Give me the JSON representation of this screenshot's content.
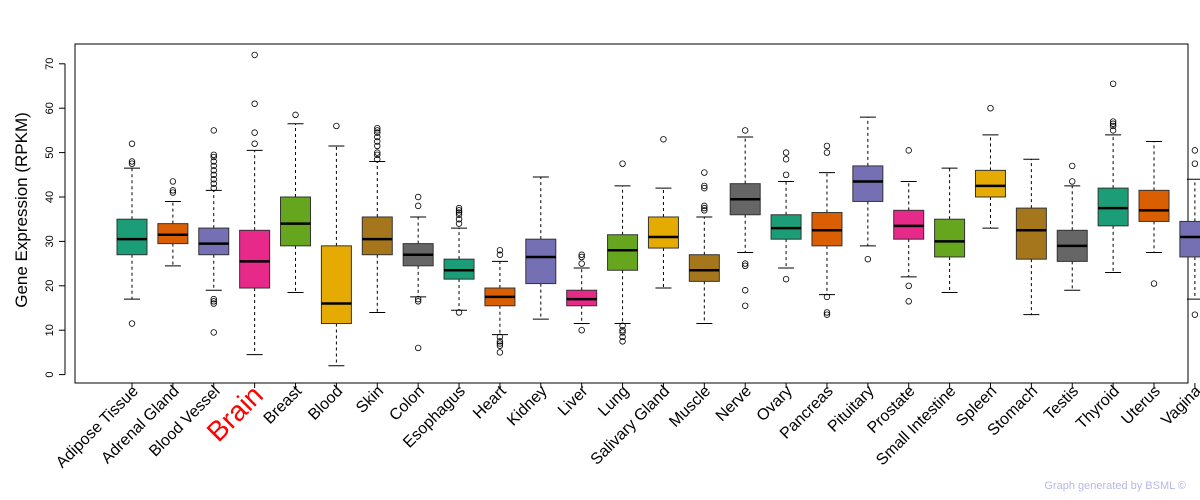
{
  "chart_data": {
    "type": "boxplot",
    "title": "",
    "ylabel": "Gene Expression (RPKM)",
    "xlabel": "",
    "ylim": [
      0,
      75
    ],
    "yticks": [
      0,
      10,
      20,
      30,
      40,
      50,
      60,
      70
    ],
    "highlight": "Brain",
    "highlight_color": "#ff0000",
    "series": [
      {
        "name": "Adipose Tissue",
        "color": "#1b9e77",
        "whisker_low": 17,
        "q1": 27,
        "median": 30.5,
        "q3": 35,
        "whisker_high": 46.5,
        "outliers": [
          11.5,
          47.5,
          48,
          52
        ]
      },
      {
        "name": "Adrenal Gland",
        "color": "#d95f02",
        "whisker_low": 24.5,
        "q1": 29.5,
        "median": 31.5,
        "q3": 34,
        "whisker_high": 39,
        "outliers": [
          41,
          41.5,
          43.5
        ]
      },
      {
        "name": "Blood Vessel",
        "color": "#7570b3",
        "whisker_low": 19,
        "q1": 27,
        "median": 29.5,
        "q3": 33,
        "whisker_high": 41.5,
        "outliers": [
          9.5,
          16,
          16.5,
          17,
          42,
          43,
          44,
          45,
          46,
          47,
          48,
          49,
          49.5,
          55
        ]
      },
      {
        "name": "Brain",
        "color": "#e7298a",
        "whisker_low": 4.5,
        "q1": 19.5,
        "median": 25.5,
        "q3": 32.5,
        "whisker_high": 50.5,
        "outliers": [
          52,
          54.5,
          61,
          72
        ]
      },
      {
        "name": "Breast",
        "color": "#66a61e",
        "whisker_low": 18.5,
        "q1": 29,
        "median": 34,
        "q3": 40,
        "whisker_high": 56.5,
        "outliers": [
          58.5
        ]
      },
      {
        "name": "Blood",
        "color": "#e6ab02",
        "whisker_low": 2,
        "q1": 11.5,
        "median": 16,
        "q3": 29,
        "whisker_high": 51.5,
        "outliers": [
          56
        ]
      },
      {
        "name": "Skin",
        "color": "#a6761d",
        "whisker_low": 14,
        "q1": 27,
        "median": 30.5,
        "q3": 35.5,
        "whisker_high": 48,
        "outliers": [
          48.5,
          49.5,
          50,
          51.5,
          52.5,
          53.5,
          54.5,
          55,
          55.5
        ]
      },
      {
        "name": "Colon",
        "color": "#666666",
        "whisker_low": 17.5,
        "q1": 24.5,
        "median": 27,
        "q3": 29.5,
        "whisker_high": 35.5,
        "outliers": [
          6,
          16.5,
          17,
          38,
          40
        ]
      },
      {
        "name": "Esophagus",
        "color": "#1b9e77",
        "whisker_low": 14.5,
        "q1": 21.5,
        "median": 23.5,
        "q3": 26,
        "whisker_high": 33,
        "outliers": [
          14,
          34,
          35,
          36,
          36.5,
          37,
          37.5
        ]
      },
      {
        "name": "Heart",
        "color": "#d95f02",
        "whisker_low": 9,
        "q1": 15.5,
        "median": 17.5,
        "q3": 19.5,
        "whisker_high": 25.5,
        "outliers": [
          5,
          6.5,
          7,
          7.5,
          8.5,
          27,
          28
        ]
      },
      {
        "name": "Kidney",
        "color": "#7570b3",
        "whisker_low": 12.5,
        "q1": 20.5,
        "median": 26.5,
        "q3": 30.5,
        "whisker_high": 44.5,
        "outliers": []
      },
      {
        "name": "Liver",
        "color": "#e7298a",
        "whisker_low": 11.5,
        "q1": 15.5,
        "median": 17,
        "q3": 19,
        "whisker_high": 24,
        "outliers": [
          10,
          25,
          26.5,
          27
        ]
      },
      {
        "name": "Lung",
        "color": "#66a61e",
        "whisker_low": 11.5,
        "q1": 23.5,
        "median": 28,
        "q3": 31.5,
        "whisker_high": 42.5,
        "outliers": [
          7.5,
          8.5,
          9.5,
          10,
          11,
          47.5
        ]
      },
      {
        "name": "Salivary Gland",
        "color": "#e6ab02",
        "whisker_low": 19.5,
        "q1": 28.5,
        "median": 31,
        "q3": 35.5,
        "whisker_high": 42,
        "outliers": [
          53
        ]
      },
      {
        "name": "Muscle",
        "color": "#a6761d",
        "whisker_low": 11.5,
        "q1": 21,
        "median": 23.5,
        "q3": 27,
        "whisker_high": 35.5,
        "outliers": [
          37,
          37.5,
          38,
          42,
          42.5,
          45.5
        ]
      },
      {
        "name": "Nerve",
        "color": "#666666",
        "whisker_low": 27.5,
        "q1": 36,
        "median": 39.5,
        "q3": 43,
        "whisker_high": 53.5,
        "outliers": [
          15.5,
          19,
          24.5,
          25,
          55
        ]
      },
      {
        "name": "Ovary",
        "color": "#1b9e77",
        "whisker_low": 24,
        "q1": 30.5,
        "median": 33,
        "q3": 36,
        "whisker_high": 43.5,
        "outliers": [
          21.5,
          45,
          48.5,
          50
        ]
      },
      {
        "name": "Pancreas",
        "color": "#d95f02",
        "whisker_low": 18,
        "q1": 29,
        "median": 32.5,
        "q3": 36.5,
        "whisker_high": 45.5,
        "outliers": [
          13.5,
          14,
          17.5,
          50,
          51.5
        ]
      },
      {
        "name": "Pituitary",
        "color": "#7570b3",
        "whisker_low": 29,
        "q1": 39,
        "median": 43.5,
        "q3": 47,
        "whisker_high": 58,
        "outliers": [
          26
        ]
      },
      {
        "name": "Prostate",
        "color": "#e7298a",
        "whisker_low": 22,
        "q1": 30.5,
        "median": 33.5,
        "q3": 37,
        "whisker_high": 43.5,
        "outliers": [
          16.5,
          20,
          50.5
        ]
      },
      {
        "name": "Small Intestine",
        "color": "#66a61e",
        "whisker_low": 18.5,
        "q1": 26.5,
        "median": 30,
        "q3": 35,
        "whisker_high": 46.5,
        "outliers": []
      },
      {
        "name": "Spleen",
        "color": "#e6ab02",
        "whisker_low": 33,
        "q1": 40,
        "median": 42.5,
        "q3": 46,
        "whisker_high": 54,
        "outliers": [
          60
        ]
      },
      {
        "name": "Stomach",
        "color": "#a6761d",
        "whisker_low": 13.5,
        "q1": 26,
        "median": 32.5,
        "q3": 37.5,
        "whisker_high": 48.5,
        "outliers": []
      },
      {
        "name": "Testis",
        "color": "#666666",
        "whisker_low": 19,
        "q1": 25.5,
        "median": 29,
        "q3": 32.5,
        "whisker_high": 42.5,
        "outliers": [
          43.5,
          47
        ]
      },
      {
        "name": "Thyroid",
        "color": "#1b9e77",
        "whisker_low": 23,
        "q1": 33.5,
        "median": 37.5,
        "q3": 42,
        "whisker_high": 54,
        "outliers": [
          55,
          56,
          56.5,
          57,
          65.5
        ]
      },
      {
        "name": "Uterus",
        "color": "#d95f02",
        "whisker_low": 27.5,
        "q1": 34.5,
        "median": 37,
        "q3": 41.5,
        "whisker_high": 52.5,
        "outliers": [
          20.5
        ]
      },
      {
        "name": "Vagina",
        "color": "#7570b3",
        "whisker_low": 17,
        "q1": 26.5,
        "median": 31,
        "q3": 34.5,
        "whisker_high": 44,
        "outliers": [
          13.5,
          47.5,
          50.5
        ]
      }
    ]
  },
  "credit": "Graph generated by BSML ©"
}
